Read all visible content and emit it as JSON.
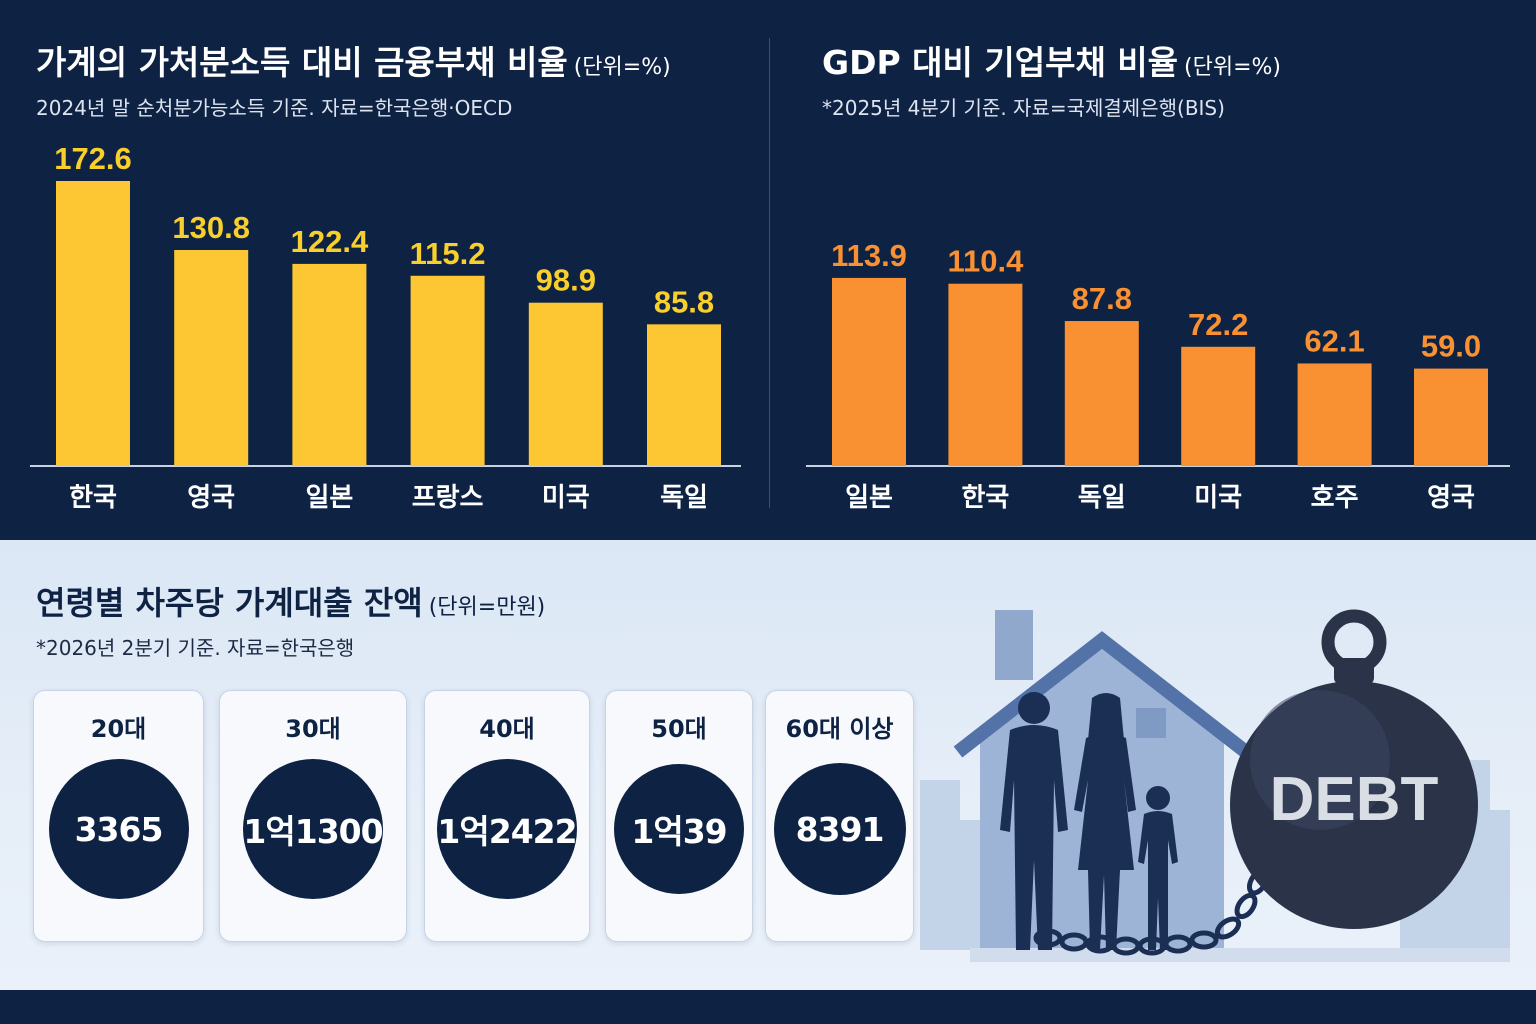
{
  "chart_data": [
    {
      "type": "bar",
      "title": "가계의 가처분소득 대비 금융부채 비율",
      "unit": "(단위=%)",
      "subtitle": "2024년 말 순처분가능소득 기준. 자료=한국은행·OECD",
      "categories": [
        "한국",
        "영국",
        "일본",
        "프랑스",
        "미국",
        "독일"
      ],
      "values": [
        172.6,
        130.8,
        122.4,
        115.2,
        98.9,
        85.8
      ],
      "value_labels": [
        "172.6",
        "130.8",
        "122.4",
        "115.2",
        "98.9",
        "85.8"
      ],
      "bar_color": "#fcc733",
      "label_color": "#f9cf2b",
      "ylim": [
        0,
        172.6
      ]
    },
    {
      "type": "bar",
      "title": "GDP 대비 기업부채 비율",
      "unit": "(단위=%)",
      "subtitle": "*2025년 4분기 기준. 자료=국제결제은행(BIS)",
      "categories": [
        "일본",
        "한국",
        "독일",
        "미국",
        "호주",
        "영국"
      ],
      "values": [
        113.9,
        110.4,
        87.8,
        72.2,
        62.1,
        59.0
      ],
      "value_labels": [
        "113.9",
        "110.4",
        "87.8",
        "72.2",
        "62.1",
        "59.0"
      ],
      "bar_color": "#f99031",
      "label_color": "#f99031",
      "ylim": [
        0,
        172.6
      ]
    },
    {
      "type": "table",
      "title": "연령별 차주당 가계대출 잔액",
      "unit": "(단위=만원)",
      "subtitle": "*2026년 2분기 기준. 자료=한국은행",
      "categories": [
        "20대",
        "30대",
        "40대",
        "50대",
        "60대 이상"
      ],
      "values": [
        "3365",
        "1억1300",
        "1억2422",
        "1억39",
        "8391"
      ]
    }
  ],
  "illustration": {
    "weight_label": "DEBT",
    "icons": [
      "house-icon",
      "family-icon",
      "debt-ball-icon",
      "chain-icon"
    ]
  },
  "colors": {
    "navy": "#0e2244",
    "yellow": "#fcc733",
    "orange": "#f99031",
    "light_bg": "#dbe7f5"
  }
}
